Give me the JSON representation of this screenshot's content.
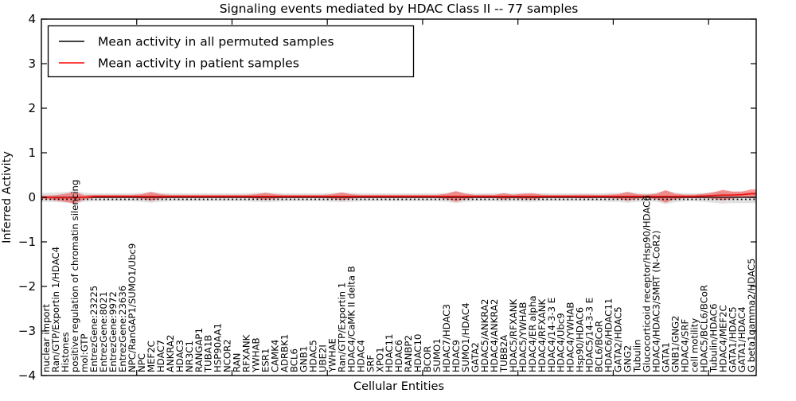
{
  "figure": {
    "title": "Signaling events mediated by HDAC Class II -- 77 samples",
    "xlabel": "Cellular Entities",
    "ylabel": "Inferred Activity"
  },
  "chart_data": {
    "type": "line",
    "title": "Signaling events mediated by HDAC Class II -- 77 samples",
    "xlabel": "Cellular Entities",
    "ylabel": "Inferred Activity",
    "ylim": [
      -4,
      4
    ],
    "yticks": [
      -4,
      -3,
      -2,
      -1,
      0,
      1,
      2,
      3,
      4
    ],
    "ytick_labels": [
      "−4",
      "−3",
      "−2",
      "−1",
      "0",
      "1",
      "2",
      "3",
      "4"
    ],
    "xticks": [
      10,
      20,
      30,
      40,
      50,
      60,
      70
    ],
    "grid": false,
    "legend_position": "upper left",
    "zero_line_style": "dotted",
    "categories": [
      "nuclear import",
      "Ran/GTP/Exportin 1/HDAC4",
      "Histones",
      "positive regulation of chromatin silencing",
      "mol:GTP",
      "EntrezGene:23225",
      "EntrezGene:8021",
      "EntrezGene:9972",
      "EntrezGene:23636",
      "NPC/RanGAP1/SUMO1/Ubc9",
      "NPC",
      "MEF2C",
      "HDAC7",
      "ANKRA2",
      "HDAC3",
      "NR3C1",
      "RANGAP1",
      "TUBA1B",
      "HSP90AA1",
      "NCOR2",
      "RAN",
      "RFXANK",
      "YWHAB",
      "ESR1",
      "CAMK4",
      "ADRBK1",
      "BCL6",
      "GNB1",
      "HDAC5",
      "UBE2I",
      "YWHAE",
      "Ran/GTP/Exportin 1",
      "HDAC4/CaMK II delta B",
      "HDAC4",
      "SRF",
      "XPO1",
      "HDAC11",
      "HDAC6",
      "RANBP2",
      "HDAC10",
      "BCOR",
      "SUMO1",
      "HDAC7/HDAC3",
      "HDAC9",
      "SUMO1/HDAC4",
      "GATA2",
      "HDAC5/ANKRA2",
      "HDAC4/ANKRA2",
      "TUBB2A",
      "HDAC5/RFXANK",
      "HDAC5/YWHAB",
      "HDAC4/ER alpha",
      "HDAC4/RFXANK",
      "HDAC4/14-3-3 E",
      "HDAC4/Ubc9",
      "HDAC4/YWHAB",
      "Hsp90/HDAC6",
      "HDAC5/14-3-3 E",
      "BCL6/BCoR",
      "HDAC6/HDAC11",
      "GATA2/HDAC5",
      "GNG2",
      "Tubulin",
      "Glucocorticoid receptor/Hsp90/HDAC6",
      "HDAC4/HDAC3/SMRT (N-CoR2)",
      "GATA1",
      "GNB1/GNG2",
      "HDAC4/SRF",
      "cell motility",
      "HDAC5/BCL6/BCoR",
      "Tubulin/HDAC6",
      "HDAC4/MEF2C",
      "GATA1/HDAC5",
      "GATA1/HDAC4",
      "G beta1gamma2/HDAC5"
    ],
    "series": [
      {
        "name": "Mean activity in all permuted samples",
        "color": "#000000",
        "band_color": "#d9d9d9",
        "values": [
          0,
          0,
          0,
          0,
          0,
          0,
          0,
          0,
          0,
          0,
          0,
          0,
          0,
          0,
          0,
          0,
          0,
          0,
          0,
          0,
          0,
          0,
          0,
          0,
          0,
          0,
          0,
          0,
          0,
          0,
          0,
          0,
          0,
          0,
          0,
          0,
          0,
          0,
          0,
          0,
          0,
          0,
          0,
          0,
          0,
          0,
          0,
          0,
          0,
          0,
          0,
          0,
          0,
          0,
          0,
          0,
          0,
          0,
          0,
          0,
          0,
          0,
          0,
          0,
          0,
          0,
          0,
          0,
          0,
          0,
          0,
          0,
          0,
          0,
          0
        ],
        "band": [
          0.1,
          0.11,
          0.12,
          0.14,
          0.1,
          0.09,
          0.09,
          0.09,
          0.09,
          0.09,
          0.1,
          0.12,
          0.1,
          0.09,
          0.09,
          0.09,
          0.09,
          0.09,
          0.09,
          0.09,
          0.09,
          0.09,
          0.1,
          0.11,
          0.1,
          0.09,
          0.09,
          0.09,
          0.09,
          0.09,
          0.1,
          0.11,
          0.1,
          0.09,
          0.09,
          0.09,
          0.09,
          0.09,
          0.09,
          0.09,
          0.09,
          0.09,
          0.1,
          0.13,
          0.1,
          0.09,
          0.09,
          0.09,
          0.1,
          0.09,
          0.1,
          0.1,
          0.09,
          0.09,
          0.09,
          0.09,
          0.09,
          0.09,
          0.09,
          0.1,
          0.1,
          0.12,
          0.1,
          0.09,
          0.1,
          0.15,
          0.11,
          0.09,
          0.09,
          0.1,
          0.12,
          0.14,
          0.13,
          0.13,
          0.13
        ]
      },
      {
        "name": "Mean activity in patient samples",
        "color": "#ee1111",
        "band_color": "#ff0000",
        "values": [
          0,
          -0.01,
          -0.01,
          -0.01,
          0,
          0.02,
          0.02,
          0.02,
          0.02,
          0.02,
          0.02,
          0.02,
          0.02,
          0.02,
          0.02,
          0.02,
          0.02,
          0.02,
          0.02,
          0.02,
          0.02,
          0.02,
          0.02,
          0.02,
          0.02,
          0.02,
          0.02,
          0.02,
          0.02,
          0.02,
          0.02,
          0.02,
          0.02,
          0.02,
          0.02,
          0.02,
          0.02,
          0.02,
          0.02,
          0.02,
          0.02,
          0.02,
          0.02,
          0.02,
          0.02,
          0.02,
          0.02,
          0.02,
          0.02,
          0.02,
          0.02,
          0.02,
          0.02,
          0.02,
          0.02,
          0.02,
          0.02,
          0.02,
          0.02,
          0.02,
          0.02,
          0.02,
          0.02,
          0.02,
          0.02,
          0.02,
          0.02,
          0.02,
          0.02,
          0.03,
          0.04,
          0.05,
          0.05,
          0.06,
          0.08
        ],
        "band": [
          0.04,
          0.06,
          0.09,
          0.13,
          0.05,
          0.035,
          0.035,
          0.035,
          0.035,
          0.035,
          0.05,
          0.1,
          0.05,
          0.035,
          0.035,
          0.035,
          0.035,
          0.035,
          0.035,
          0.035,
          0.035,
          0.035,
          0.05,
          0.08,
          0.05,
          0.035,
          0.035,
          0.035,
          0.035,
          0.035,
          0.05,
          0.09,
          0.05,
          0.035,
          0.035,
          0.035,
          0.035,
          0.035,
          0.035,
          0.035,
          0.035,
          0.035,
          0.06,
          0.12,
          0.06,
          0.035,
          0.04,
          0.035,
          0.07,
          0.04,
          0.06,
          0.07,
          0.04,
          0.035,
          0.035,
          0.035,
          0.04,
          0.04,
          0.035,
          0.04,
          0.05,
          0.1,
          0.05,
          0.04,
          0.06,
          0.14,
          0.06,
          0.04,
          0.04,
          0.05,
          0.07,
          0.12,
          0.08,
          0.07,
          0.1
        ]
      }
    ]
  },
  "colors": {
    "axis": "#000000",
    "background": "#ffffff",
    "zero_line": "#000000"
  }
}
